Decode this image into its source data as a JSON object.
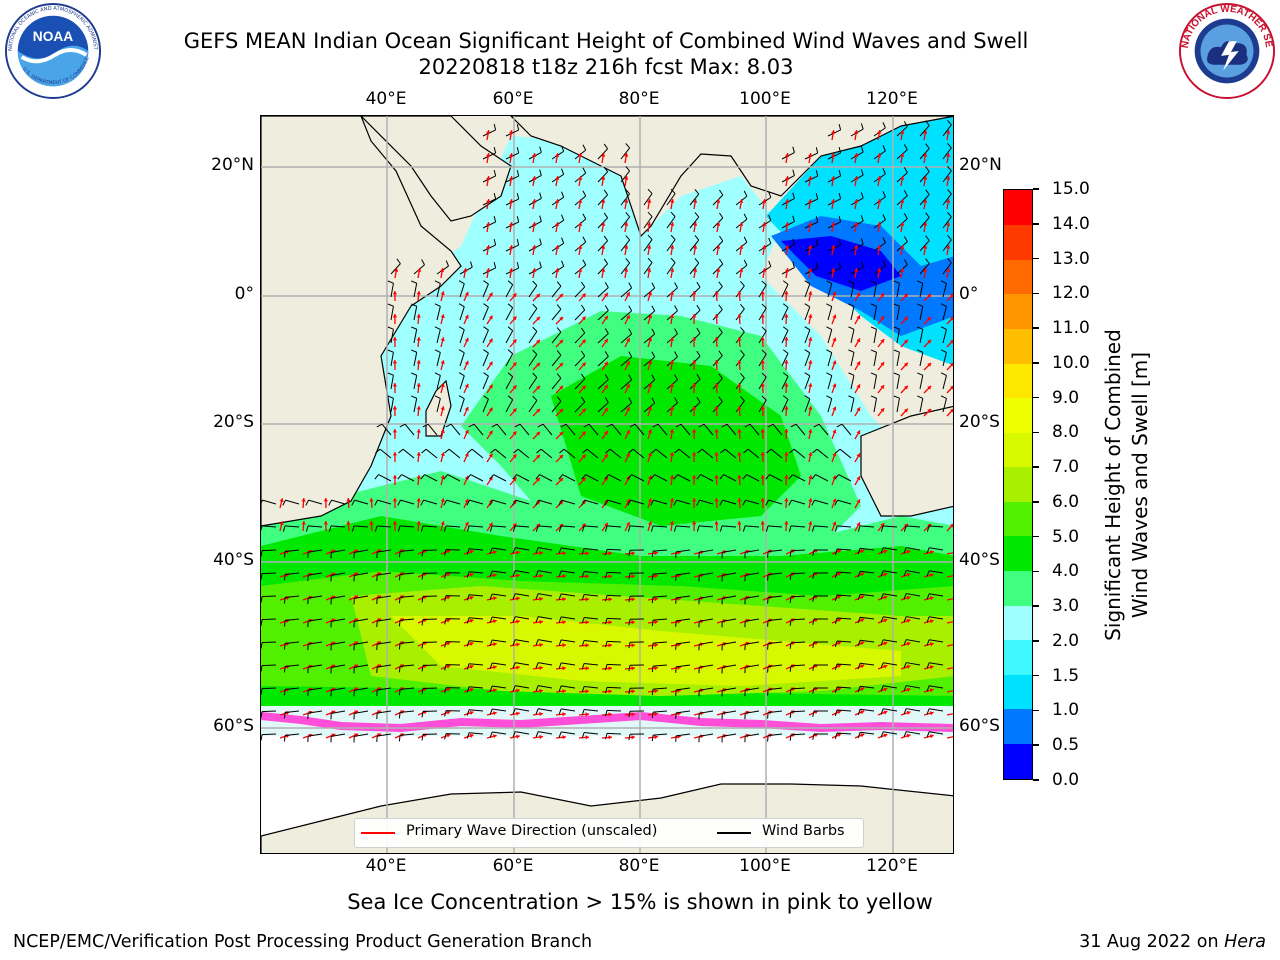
{
  "title": {
    "line1": "GEFS MEAN Indian Ocean Significant Height of Combined Wind Waves and Swell",
    "line2": "20220818 t18z 216h fcst    Max: 8.03"
  },
  "logos": {
    "noaa_text": "NOAA",
    "noaa_ring_text": "NATIONAL OCEANIC AND ATMOSPHERIC ADMINISTRATION",
    "noaa_bottom_text": "U.S. DEPARTMENT OF COMMERCE",
    "nws_text": "NATIONAL WEATHER SERVICE"
  },
  "map": {
    "region": "Indian Ocean",
    "lon_labels": [
      "40°E",
      "60°E",
      "80°E",
      "100°E",
      "120°E"
    ],
    "lat_labels": [
      "20°N",
      "0°",
      "20°S",
      "40°S",
      "60°S"
    ],
    "gridlines": true
  },
  "colorbar": {
    "title_line1": "Significant Height of Combined",
    "title_line2": "Wind Waves and Swell [m]",
    "tick_labels": [
      "0.0",
      "0.5",
      "1.0",
      "1.5",
      "2.0",
      "3.0",
      "4.0",
      "5.0",
      "6.0",
      "7.0",
      "8.0",
      "9.0",
      "10.0",
      "11.0",
      "12.0",
      "13.0",
      "14.0",
      "15.0"
    ],
    "colors": [
      "#0000ff",
      "#0078ff",
      "#00e0ff",
      "#40f8ff",
      "#a0ffff",
      "#40ff80",
      "#00e800",
      "#50f000",
      "#a8f000",
      "#d8f800",
      "#f0ff00",
      "#ffe800",
      "#ffbe00",
      "#ff9600",
      "#ff6a00",
      "#ff3a00",
      "#ff0000"
    ]
  },
  "legend": {
    "wave_direction": "Primary Wave Direction (unscaled)",
    "wind_barbs": "Wind Barbs",
    "wave_color": "#ff0000",
    "barb_color": "#000000"
  },
  "note": "Sea Ice Concentration > 15% is shown in pink to yellow",
  "footer": {
    "left": "NCEP/EMC/Verification Post Processing Product Generation Branch",
    "right_date": "31 Aug 2022 on",
    "right_host": "Hera"
  }
}
